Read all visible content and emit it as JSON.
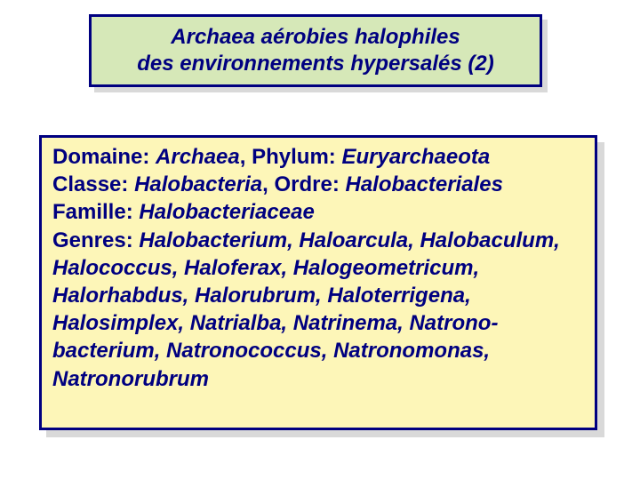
{
  "colors": {
    "border": "#000080",
    "text": "#000080",
    "title_bg": "#d6e8b8",
    "content_bg": "#fdf6b8",
    "shadow": "#d9d9d9",
    "page_bg": "#ffffff"
  },
  "typography": {
    "font_family": "Comic Sans MS",
    "title_fontsize": 24,
    "body_fontsize": 24,
    "title_italic": true,
    "title_bold": true,
    "body_bold": true
  },
  "title": {
    "line1": "Archaea aérobies halophiles",
    "line2": "des environnements hypersalés (2)"
  },
  "taxonomy": {
    "domaine_label": "Domaine:",
    "domaine_value": "Archaea",
    "phylum_label": "Phylum:",
    "phylum_value": "Euryarchaeota",
    "classe_label": "Classe:",
    "classe_value": "Halobacteria",
    "ordre_label": "Ordre:",
    "ordre_value": "Halobacteriales",
    "famille_label": "Famille:",
    "famille_value": "Halobacteriaceae",
    "genres_label": "Genres:",
    "genres_text": "Halobacterium, Haloarcula, Halobaculum, Halococcus, Haloferax,  Halogeometricum, Halorhabdus, Halorubrum, Haloterrigena, Halosimplex, Natrialba, Natrinema, Natrono-bacterium, Natronococcus, Natronomonas, Natronorubrum"
  }
}
